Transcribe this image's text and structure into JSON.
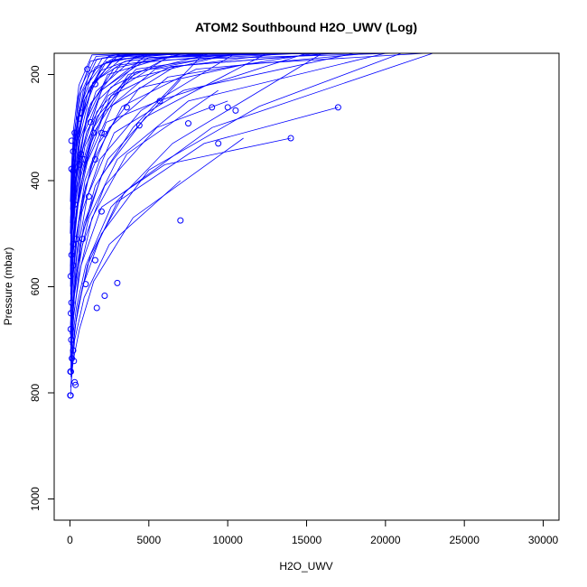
{
  "chart_data": {
    "type": "line",
    "title": "ATOM2 Southbound H2O_UWV (Log)",
    "xlabel": "H2O_UWV",
    "ylabel": "Pressure (mbar)",
    "xlim": [
      -1000,
      31000
    ],
    "ylim": [
      1040,
      160
    ],
    "y_axis_reversed": true,
    "x_ticks": [
      0,
      5000,
      10000,
      15000,
      20000,
      25000,
      30000
    ],
    "y_ticks": [
      200,
      400,
      600,
      800,
      1000
    ],
    "x_tick_labels": [
      "0",
      "5000",
      "10000",
      "15000",
      "20000",
      "25000",
      "30000"
    ],
    "y_tick_labels": [
      "200",
      "400",
      "600",
      "800",
      "1000"
    ],
    "color": "#0000ff",
    "marker": "open-circle",
    "grid": false,
    "note_series_shape": "profiles drawn as connected points; many lines extend beyond top of plot",
    "series": [
      {
        "x": [
          50,
          120,
          300,
          900,
          2500,
          7000
        ],
        "y": [
          805,
          760,
          700,
          620,
          520,
          400
        ]
      },
      {
        "x": [
          40,
          200,
          600,
          1500,
          4000,
          11000
        ],
        "y": [
          790,
          740,
          680,
          590,
          470,
          320
        ]
      },
      {
        "x": [
          80,
          150,
          400,
          1100,
          3000,
          8500,
          17000
        ],
        "y": [
          780,
          730,
          660,
          560,
          440,
          330,
          262
        ]
      },
      {
        "x": [
          30,
          100,
          250,
          700,
          2000,
          6000,
          14000
        ],
        "y": [
          760,
          720,
          650,
          560,
          450,
          370,
          320
        ]
      },
      {
        "x": [
          60,
          180,
          500,
          1300,
          3500,
          9000,
          23000
        ],
        "y": [
          770,
          710,
          640,
          540,
          420,
          300,
          160
        ]
      },
      {
        "x": [
          20,
          90,
          260,
          800,
          2200,
          5500,
          10000
        ],
        "y": [
          740,
          690,
          620,
          520,
          410,
          300,
          250
        ]
      },
      {
        "x": [
          100,
          300,
          800,
          2000,
          5000,
          12000,
          21000
        ],
        "y": [
          735,
          680,
          600,
          500,
          380,
          260,
          160
        ]
      },
      {
        "x": [
          40,
          150,
          350,
          900,
          2400,
          7000
        ],
        "y": [
          725,
          670,
          590,
          480,
          360,
          210
        ]
      },
      {
        "x": [
          70,
          220,
          550,
          1400,
          3600,
          9400
        ],
        "y": [
          720,
          660,
          580,
          470,
          350,
          230
        ]
      },
      {
        "x": [
          30,
          110,
          300,
          750,
          1900,
          4500,
          10500
        ],
        "y": [
          710,
          650,
          570,
          460,
          360,
          268,
          160
        ]
      },
      {
        "x": [
          150,
          400,
          1000,
          2600,
          6500,
          16000
        ],
        "y": [
          700,
          640,
          560,
          450,
          330,
          160
        ]
      },
      {
        "x": [
          50,
          200,
          450,
          1100,
          2800,
          7200,
          18000
        ],
        "y": [
          695,
          630,
          540,
          430,
          310,
          230,
          160
        ]
      },
      {
        "x": [
          20,
          80,
          220,
          600,
          1500,
          3700,
          9000
        ],
        "y": [
          690,
          620,
          530,
          420,
          300,
          200,
          160
        ]
      },
      {
        "x": [
          90,
          260,
          650,
          1600,
          4000,
          8500
        ],
        "y": [
          680,
          610,
          520,
          410,
          300,
          160
        ]
      },
      {
        "x": [
          40,
          140,
          380,
          950,
          2300,
          5600,
          15000
        ],
        "y": [
          670,
          600,
          510,
          400,
          290,
          250,
          160
        ]
      },
      {
        "x": [
          120,
          330,
          800,
          2000,
          4800,
          12500
        ],
        "y": [
          660,
          590,
          500,
          390,
          280,
          160
        ]
      },
      {
        "x": [
          30,
          100,
          280,
          700,
          1700,
          4200,
          11000
        ],
        "y": [
          650,
          580,
          490,
          380,
          270,
          190,
          160
        ]
      },
      {
        "x": [
          70,
          230,
          560,
          1350,
          3300,
          8000,
          19000
        ],
        "y": [
          640,
          570,
          480,
          370,
          260,
          190,
          160
        ]
      },
      {
        "x": [
          200,
          500,
          1200,
          3000,
          7500,
          20000
        ],
        "y": [
          630,
          560,
          470,
          360,
          250,
          160
        ]
      },
      {
        "x": [
          60,
          170,
          420,
          1050,
          2600,
          6400,
          16500
        ],
        "y": [
          625,
          550,
          460,
          350,
          240,
          185,
          160
        ]
      },
      {
        "x": [
          40,
          130,
          330,
          820,
          2000,
          5000
        ],
        "y": [
          615,
          540,
          450,
          340,
          230,
          160
        ]
      },
      {
        "x": [
          110,
          300,
          740,
          1800,
          4400,
          11200,
          22500
        ],
        "y": [
          610,
          530,
          440,
          330,
          225,
          180,
          160
        ]
      },
      {
        "x": [
          30,
          90,
          240,
          600,
          1450,
          3500,
          8800
        ],
        "y": [
          600,
          520,
          430,
          320,
          215,
          175,
          160
        ]
      },
      {
        "x": [
          80,
          250,
          600,
          1500,
          3600,
          9000,
          20500
        ],
        "y": [
          595,
          510,
          420,
          310,
          210,
          170,
          160
        ]
      },
      {
        "x": [
          150,
          420,
          1000,
          2500,
          6200,
          15500
        ],
        "y": [
          590,
          500,
          410,
          300,
          205,
          160
        ]
      },
      {
        "x": [
          50,
          160,
          400,
          1000,
          2400,
          6000,
          14500
        ],
        "y": [
          585,
          495,
          400,
          290,
          200,
          168,
          160
        ]
      },
      {
        "x": [
          20,
          70,
          200,
          500,
          1200,
          3000,
          7500
        ],
        "y": [
          580,
          490,
          395,
          285,
          198,
          165,
          160
        ]
      },
      {
        "x": [
          90,
          280,
          700,
          1700,
          4200,
          10500
        ],
        "y": [
          570,
          485,
          390,
          280,
          195,
          160
        ]
      },
      {
        "x": [
          40,
          120,
          310,
          780,
          1900,
          4700,
          12000
        ],
        "y": [
          560,
          480,
          385,
          275,
          193,
          163,
          160
        ]
      },
      {
        "x": [
          130,
          360,
          880,
          2200,
          5400,
          13500
        ],
        "y": [
          555,
          470,
          380,
          270,
          190,
          160
        ]
      },
      {
        "x": [
          60,
          190,
          460,
          1150,
          2800,
          7000,
          17500
        ],
        "y": [
          545,
          465,
          375,
          265,
          188,
          162,
          160
        ]
      },
      {
        "x": [
          30,
          100,
          260,
          650,
          1600,
          4000,
          10000
        ],
        "y": [
          540,
          460,
          370,
          262,
          186,
          161,
          160
        ]
      },
      {
        "x": [
          170,
          450,
          1100,
          2700,
          6700,
          16800
        ],
        "y": [
          530,
          455,
          365,
          258,
          184,
          160
        ]
      },
      {
        "x": [
          70,
          210,
          520,
          1300,
          3200,
          8000,
          19800
        ],
        "y": [
          525,
          450,
          360,
          255,
          182,
          161,
          160
        ]
      },
      {
        "x": [
          40,
          140,
          350,
          870,
          2100,
          5200
        ],
        "y": [
          520,
          445,
          355,
          250,
          180,
          160
        ]
      },
      {
        "x": [
          100,
          290,
          720,
          1800,
          4300,
          10800,
          21500
        ],
        "y": [
          510,
          440,
          350,
          248,
          178,
          161,
          160
        ]
      },
      {
        "x": [
          50,
          150,
          380,
          950,
          2300,
          5800,
          14800
        ],
        "y": [
          505,
          435,
          345,
          245,
          176,
          161,
          160
        ]
      },
      {
        "x": [
          20,
          80,
          210,
          520,
          1300,
          3200,
          8100
        ],
        "y": [
          500,
          430,
          340,
          242,
          175,
          161,
          160
        ]
      },
      {
        "x": [
          140,
          390,
          950,
          2400,
          5900,
          14800
        ],
        "y": [
          495,
          425,
          335,
          240,
          173,
          160
        ]
      },
      {
        "x": [
          60,
          180,
          450,
          1100,
          2700,
          6800,
          17000
        ],
        "y": [
          490,
          420,
          330,
          238,
          172,
          161,
          160
        ]
      },
      {
        "x": [
          30,
          110,
          280,
          700,
          1700,
          4200,
          10600
        ],
        "y": [
          480,
          415,
          325,
          235,
          171,
          161,
          160
        ]
      },
      {
        "x": [
          90,
          270,
          660,
          1650,
          4000,
          9900
        ],
        "y": [
          475,
          410,
          322,
          232,
          170,
          160
        ]
      },
      {
        "x": [
          45,
          135,
          340,
          850,
          2050,
          5100,
          12800
        ],
        "y": [
          470,
          405,
          318,
          230,
          169,
          161,
          160
        ]
      },
      {
        "x": [
          120,
          340,
          830,
          2050,
          5000,
          12500
        ],
        "y": [
          465,
          400,
          315,
          228,
          168,
          160
        ]
      },
      {
        "x": [
          70,
          200,
          490,
          1200,
          2950,
          7400,
          18500
        ],
        "y": [
          460,
          395,
          312,
          226,
          167,
          161,
          160
        ]
      },
      {
        "x": [
          35,
          105,
          270,
          670,
          1650,
          4100,
          10300
        ],
        "y": [
          455,
          390,
          310,
          225,
          166,
          161,
          160
        ]
      },
      {
        "x": [
          160,
          440,
          1060,
          2600,
          6400,
          16000
        ],
        "y": [
          450,
          385,
          308,
          224,
          165,
          160
        ]
      },
      {
        "x": [
          55,
          165,
          410,
          1020,
          2500,
          6200,
          15600
        ],
        "y": [
          445,
          380,
          305,
          222,
          164,
          161,
          160
        ]
      },
      {
        "x": [
          25,
          85,
          230,
          570,
          1400,
          3500,
          8800
        ],
        "y": [
          440,
          378,
          302,
          220,
          163,
          161,
          160
        ]
      },
      {
        "x": [
          80,
          240,
          590,
          1450,
          3550,
          8900,
          22000
        ],
        "y": [
          430,
          375,
          300,
          218,
          162,
          161,
          160
        ]
      }
    ],
    "markers": [
      {
        "x": 1100,
        "y": 190
      },
      {
        "x": 1600,
        "y": 218
      },
      {
        "x": 3600,
        "y": 262
      },
      {
        "x": 5700,
        "y": 250
      },
      {
        "x": 9000,
        "y": 262
      },
      {
        "x": 10000,
        "y": 262
      },
      {
        "x": 10500,
        "y": 268
      },
      {
        "x": 17000,
        "y": 262
      },
      {
        "x": 700,
        "y": 272
      },
      {
        "x": 600,
        "y": 283
      },
      {
        "x": 1300,
        "y": 290
      },
      {
        "x": 4400,
        "y": 296
      },
      {
        "x": 7500,
        "y": 292
      },
      {
        "x": 300,
        "y": 310
      },
      {
        "x": 1500,
        "y": 310
      },
      {
        "x": 2000,
        "y": 310
      },
      {
        "x": 2200,
        "y": 312
      },
      {
        "x": 14000,
        "y": 320
      },
      {
        "x": 9400,
        "y": 330
      },
      {
        "x": 100,
        "y": 325
      },
      {
        "x": 700,
        "y": 350
      },
      {
        "x": 200,
        "y": 345
      },
      {
        "x": 1600,
        "y": 360
      },
      {
        "x": 900,
        "y": 360
      },
      {
        "x": 600,
        "y": 370
      },
      {
        "x": 100,
        "y": 378
      },
      {
        "x": 200,
        "y": 382
      },
      {
        "x": 1200,
        "y": 430
      },
      {
        "x": 300,
        "y": 445
      },
      {
        "x": 2000,
        "y": 458
      },
      {
        "x": 7000,
        "y": 475
      },
      {
        "x": 800,
        "y": 510
      },
      {
        "x": 200,
        "y": 520
      },
      {
        "x": 400,
        "y": 510
      },
      {
        "x": 100,
        "y": 540
      },
      {
        "x": 1600,
        "y": 550
      },
      {
        "x": 200,
        "y": 560
      },
      {
        "x": 50,
        "y": 580
      },
      {
        "x": 1000,
        "y": 595
      },
      {
        "x": 3000,
        "y": 593
      },
      {
        "x": 2200,
        "y": 617
      },
      {
        "x": 100,
        "y": 630
      },
      {
        "x": 1700,
        "y": 640
      },
      {
        "x": 60,
        "y": 650
      },
      {
        "x": 50,
        "y": 680
      },
      {
        "x": 80,
        "y": 700
      },
      {
        "x": 200,
        "y": 720
      },
      {
        "x": 120,
        "y": 735
      },
      {
        "x": 250,
        "y": 740
      },
      {
        "x": 30,
        "y": 760
      },
      {
        "x": 350,
        "y": 785
      },
      {
        "x": 300,
        "y": 780
      },
      {
        "x": 20,
        "y": 805
      },
      {
        "x": 40,
        "y": 805
      },
      {
        "x": 60,
        "y": 760
      }
    ]
  }
}
